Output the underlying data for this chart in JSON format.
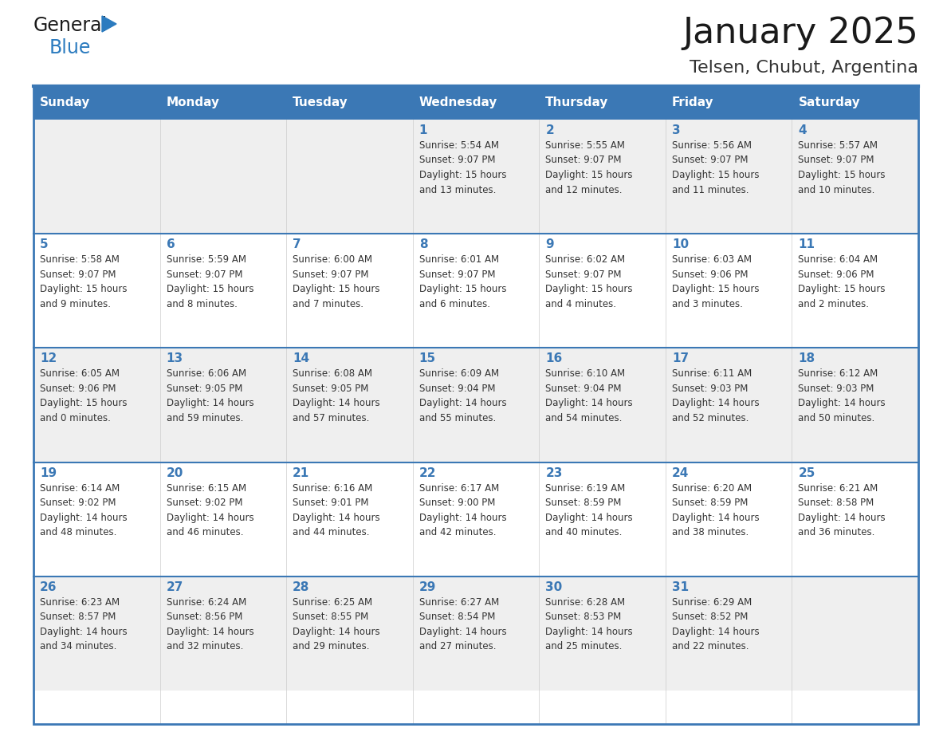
{
  "title": "January 2025",
  "subtitle": "Telsen, Chubut, Argentina",
  "days_of_week": [
    "Sunday",
    "Monday",
    "Tuesday",
    "Wednesday",
    "Thursday",
    "Friday",
    "Saturday"
  ],
  "header_bg": "#3b78b5",
  "header_text": "#ffffff",
  "row_bg_odd": "#efefef",
  "row_bg_even": "#ffffff",
  "border_color": "#3b78b5",
  "day_num_color": "#3b78b5",
  "cell_text_color": "#333333",
  "title_color": "#1a1a1a",
  "subtitle_color": "#333333",
  "logo_general_color": "#1a1a1a",
  "logo_blue_color": "#2b7bbf",
  "weeks": [
    [
      {
        "day": null,
        "text": ""
      },
      {
        "day": null,
        "text": ""
      },
      {
        "day": null,
        "text": ""
      },
      {
        "day": 1,
        "text": "Sunrise: 5:54 AM\nSunset: 9:07 PM\nDaylight: 15 hours\nand 13 minutes."
      },
      {
        "day": 2,
        "text": "Sunrise: 5:55 AM\nSunset: 9:07 PM\nDaylight: 15 hours\nand 12 minutes."
      },
      {
        "day": 3,
        "text": "Sunrise: 5:56 AM\nSunset: 9:07 PM\nDaylight: 15 hours\nand 11 minutes."
      },
      {
        "day": 4,
        "text": "Sunrise: 5:57 AM\nSunset: 9:07 PM\nDaylight: 15 hours\nand 10 minutes."
      }
    ],
    [
      {
        "day": 5,
        "text": "Sunrise: 5:58 AM\nSunset: 9:07 PM\nDaylight: 15 hours\nand 9 minutes."
      },
      {
        "day": 6,
        "text": "Sunrise: 5:59 AM\nSunset: 9:07 PM\nDaylight: 15 hours\nand 8 minutes."
      },
      {
        "day": 7,
        "text": "Sunrise: 6:00 AM\nSunset: 9:07 PM\nDaylight: 15 hours\nand 7 minutes."
      },
      {
        "day": 8,
        "text": "Sunrise: 6:01 AM\nSunset: 9:07 PM\nDaylight: 15 hours\nand 6 minutes."
      },
      {
        "day": 9,
        "text": "Sunrise: 6:02 AM\nSunset: 9:07 PM\nDaylight: 15 hours\nand 4 minutes."
      },
      {
        "day": 10,
        "text": "Sunrise: 6:03 AM\nSunset: 9:06 PM\nDaylight: 15 hours\nand 3 minutes."
      },
      {
        "day": 11,
        "text": "Sunrise: 6:04 AM\nSunset: 9:06 PM\nDaylight: 15 hours\nand 2 minutes."
      }
    ],
    [
      {
        "day": 12,
        "text": "Sunrise: 6:05 AM\nSunset: 9:06 PM\nDaylight: 15 hours\nand 0 minutes."
      },
      {
        "day": 13,
        "text": "Sunrise: 6:06 AM\nSunset: 9:05 PM\nDaylight: 14 hours\nand 59 minutes."
      },
      {
        "day": 14,
        "text": "Sunrise: 6:08 AM\nSunset: 9:05 PM\nDaylight: 14 hours\nand 57 minutes."
      },
      {
        "day": 15,
        "text": "Sunrise: 6:09 AM\nSunset: 9:04 PM\nDaylight: 14 hours\nand 55 minutes."
      },
      {
        "day": 16,
        "text": "Sunrise: 6:10 AM\nSunset: 9:04 PM\nDaylight: 14 hours\nand 54 minutes."
      },
      {
        "day": 17,
        "text": "Sunrise: 6:11 AM\nSunset: 9:03 PM\nDaylight: 14 hours\nand 52 minutes."
      },
      {
        "day": 18,
        "text": "Sunrise: 6:12 AM\nSunset: 9:03 PM\nDaylight: 14 hours\nand 50 minutes."
      }
    ],
    [
      {
        "day": 19,
        "text": "Sunrise: 6:14 AM\nSunset: 9:02 PM\nDaylight: 14 hours\nand 48 minutes."
      },
      {
        "day": 20,
        "text": "Sunrise: 6:15 AM\nSunset: 9:02 PM\nDaylight: 14 hours\nand 46 minutes."
      },
      {
        "day": 21,
        "text": "Sunrise: 6:16 AM\nSunset: 9:01 PM\nDaylight: 14 hours\nand 44 minutes."
      },
      {
        "day": 22,
        "text": "Sunrise: 6:17 AM\nSunset: 9:00 PM\nDaylight: 14 hours\nand 42 minutes."
      },
      {
        "day": 23,
        "text": "Sunrise: 6:19 AM\nSunset: 8:59 PM\nDaylight: 14 hours\nand 40 minutes."
      },
      {
        "day": 24,
        "text": "Sunrise: 6:20 AM\nSunset: 8:59 PM\nDaylight: 14 hours\nand 38 minutes."
      },
      {
        "day": 25,
        "text": "Sunrise: 6:21 AM\nSunset: 8:58 PM\nDaylight: 14 hours\nand 36 minutes."
      }
    ],
    [
      {
        "day": 26,
        "text": "Sunrise: 6:23 AM\nSunset: 8:57 PM\nDaylight: 14 hours\nand 34 minutes."
      },
      {
        "day": 27,
        "text": "Sunrise: 6:24 AM\nSunset: 8:56 PM\nDaylight: 14 hours\nand 32 minutes."
      },
      {
        "day": 28,
        "text": "Sunrise: 6:25 AM\nSunset: 8:55 PM\nDaylight: 14 hours\nand 29 minutes."
      },
      {
        "day": 29,
        "text": "Sunrise: 6:27 AM\nSunset: 8:54 PM\nDaylight: 14 hours\nand 27 minutes."
      },
      {
        "day": 30,
        "text": "Sunrise: 6:28 AM\nSunset: 8:53 PM\nDaylight: 14 hours\nand 25 minutes."
      },
      {
        "day": 31,
        "text": "Sunrise: 6:29 AM\nSunset: 8:52 PM\nDaylight: 14 hours\nand 22 minutes."
      },
      {
        "day": null,
        "text": ""
      }
    ]
  ]
}
